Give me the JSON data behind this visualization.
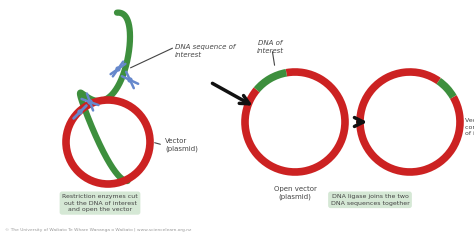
{
  "bg_color": "#ffffff",
  "red_color": "#cc2222",
  "green_color": "#3d8f3d",
  "arrow_color": "#111111",
  "text_color": "#444444",
  "box_bg": "#d5e8d5",
  "scissors_color": "#6688cc",
  "footer_text": "© The University of Waikato Te Whare Wananga o Waikato | www.sciencelearn.org.nz",
  "label_dna_seq": "DNA sequence of\ninterest",
  "label_vector": "Vector\n(plasmid)",
  "label_dna_of_interest": "DNA of\ninterest",
  "label_open_vector": "Open vector\n(plasmid)",
  "label_final_vector": "Vector (plasmid)\ncontaining DNA\nof interest",
  "label_restriction": "Restriction enzymes cut\nout the DNA of interest\nand open the vector",
  "label_ligase": "DNA ligase joins the two\nDNA sequences together"
}
